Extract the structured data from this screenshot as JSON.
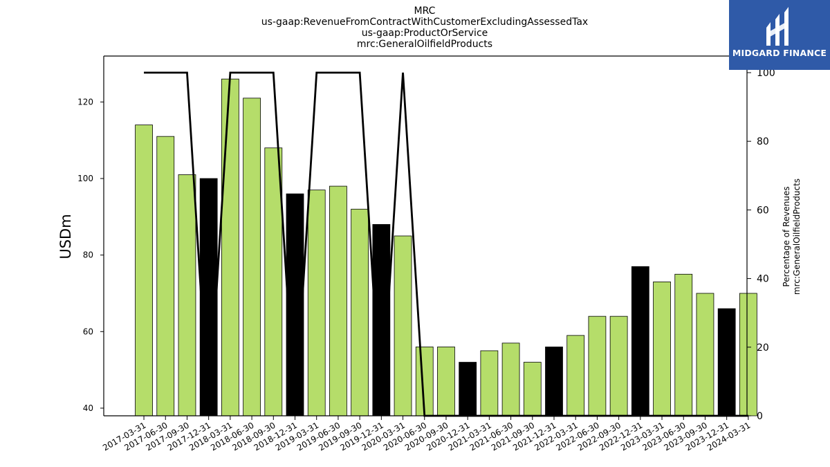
{
  "logo": {
    "text": "MIDGARD FINANCE"
  },
  "chart_data": {
    "type": "bar",
    "title_lines": [
      "MRC",
      "us-gaap:RevenueFromContractWithCustomerExcludingAssessedTax",
      "us-gaap:ProductOrService",
      "mrc:GeneralOilfieldProducts"
    ],
    "ylabel": "USDm",
    "ylabel_right": [
      "Percentage of Revenues",
      "mrc:GeneralOilfieldProducts"
    ],
    "ylim": [
      38,
      132
    ],
    "yticks": [
      40,
      60,
      80,
      100,
      120
    ],
    "y2lim": [
      0,
      100
    ],
    "y2ticks": [
      0,
      20,
      40,
      60,
      80,
      100
    ],
    "categories": [
      "2017-03-31",
      "2017-06-30",
      "2017-09-30",
      "2017-12-31",
      "2018-03-31",
      "2018-06-30",
      "2018-09-30",
      "2018-12-31",
      "2019-03-31",
      "2019-06-30",
      "2019-09-30",
      "2019-12-31",
      "2020-03-31",
      "2020-06-30",
      "2020-09-30",
      "2020-12-31",
      "2021-03-31",
      "2021-06-30",
      "2021-09-30",
      "2021-12-31",
      "2022-03-31",
      "2022-06-30",
      "2022-09-30",
      "2022-12-31",
      "2023-03-31",
      "2023-06-30",
      "2023-09-30",
      "2023-12-31",
      "2024-03-31"
    ],
    "values": [
      114,
      111,
      101,
      100,
      126,
      121,
      108,
      96,
      97,
      98,
      92,
      88,
      85,
      56,
      56,
      52,
      55,
      57,
      52,
      56,
      59,
      64,
      64,
      77,
      73,
      75,
      70,
      66,
      70
    ],
    "year_end_highlight": [
      false,
      false,
      false,
      true,
      false,
      false,
      false,
      true,
      false,
      false,
      false,
      true,
      false,
      false,
      false,
      true,
      false,
      false,
      false,
      true,
      false,
      false,
      false,
      true,
      false,
      false,
      false,
      true,
      false
    ],
    "percentage_series": [
      100,
      100,
      100,
      0,
      100,
      100,
      100,
      0,
      100,
      100,
      100,
      0,
      100,
      0,
      0,
      0,
      0,
      0,
      0,
      0,
      0,
      0,
      0,
      0,
      0,
      0,
      0,
      0,
      0
    ],
    "colors": {
      "bar": "#b5dd6a",
      "bar_highlight": "#000000",
      "line": "#000000"
    },
    "grid": false
  }
}
